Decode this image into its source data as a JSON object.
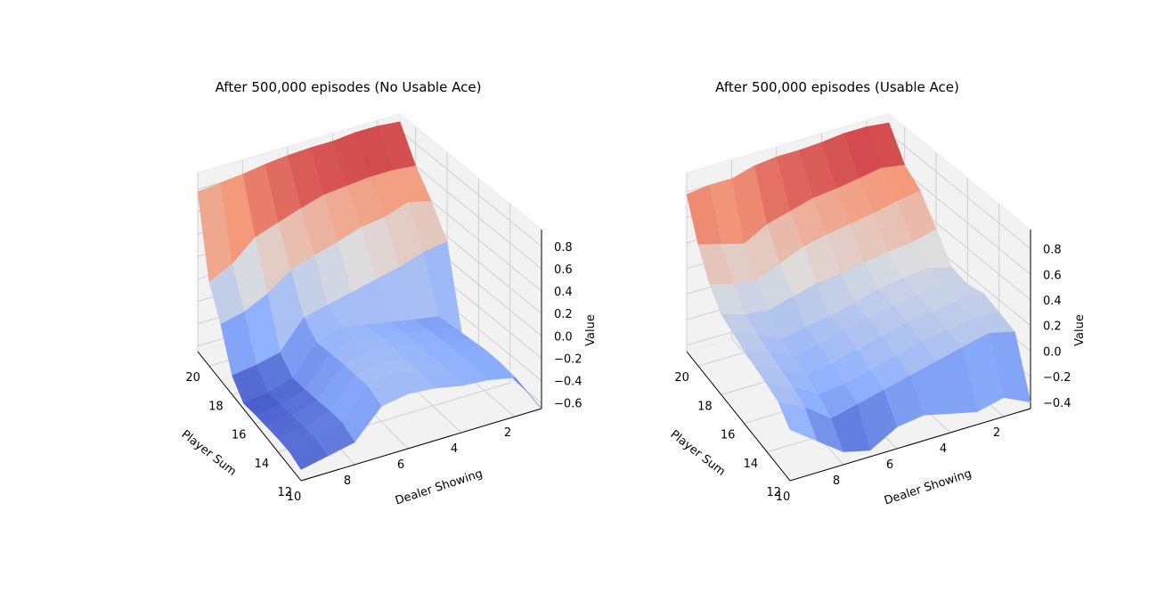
{
  "figure": {
    "type": "surface3d",
    "colormap": "coolwarm"
  },
  "chart_data": [
    {
      "type": "surface3d",
      "title": "After 500,000 episodes (No Usable Ace)",
      "xlabel": "Player Sum",
      "ylabel": "Dealer Showing",
      "zlabel": "Value",
      "x_ticks": [
        "12",
        "14",
        "16",
        "18",
        "20"
      ],
      "y_ticks": [
        "2",
        "4",
        "6",
        "8",
        "10"
      ],
      "z_ticks": [
        "−0.6",
        "−0.4",
        "−0.2",
        "0.0",
        "0.2",
        "0.4",
        "0.6",
        "0.8"
      ],
      "x": [
        12,
        13,
        14,
        15,
        16,
        17,
        18,
        19,
        20,
        21
      ],
      "y": [
        1,
        2,
        3,
        4,
        5,
        6,
        7,
        8,
        9,
        10
      ],
      "zlim": [
        -0.65,
        0.95
      ],
      "z": [
        [
          -0.65,
          -0.3,
          -0.25,
          -0.23,
          -0.18,
          -0.16,
          -0.2,
          -0.45,
          -0.5,
          -0.55
        ],
        [
          -0.6,
          -0.28,
          -0.24,
          -0.2,
          -0.16,
          -0.1,
          -0.15,
          -0.4,
          -0.48,
          -0.52
        ],
        [
          -0.58,
          -0.28,
          -0.25,
          -0.22,
          -0.17,
          -0.12,
          -0.17,
          -0.42,
          -0.5,
          -0.53
        ],
        [
          -0.58,
          -0.3,
          -0.26,
          -0.22,
          -0.18,
          -0.14,
          -0.19,
          -0.45,
          -0.52,
          -0.55
        ],
        [
          -0.6,
          -0.32,
          -0.28,
          -0.24,
          -0.2,
          -0.15,
          -0.22,
          -0.48,
          -0.55,
          -0.57
        ],
        [
          -0.62,
          -0.34,
          -0.3,
          -0.26,
          -0.22,
          -0.18,
          -0.25,
          -0.5,
          -0.57,
          -0.6
        ],
        [
          0.15,
          0.12,
          0.05,
          0.0,
          -0.05,
          -0.1,
          -0.15,
          -0.4,
          -0.45,
          -0.48
        ],
        [
          0.4,
          0.45,
          0.38,
          0.35,
          0.28,
          0.22,
          0.15,
          0.0,
          -0.1,
          -0.15
        ],
        [
          0.6,
          0.62,
          0.62,
          0.6,
          0.58,
          0.52,
          0.45,
          0.38,
          0.2,
          0.1
        ],
        [
          0.88,
          0.9,
          0.9,
          0.88,
          0.88,
          0.87,
          0.85,
          0.82,
          0.8,
          0.78
        ]
      ]
    },
    {
      "type": "surface3d",
      "title": "After 500,000 episodes (Usable Ace)",
      "xlabel": "Player Sum",
      "ylabel": "Dealer Showing",
      "zlabel": "Value",
      "x_ticks": [
        "12",
        "14",
        "16",
        "18",
        "20"
      ],
      "y_ticks": [
        "2",
        "4",
        "6",
        "8",
        "10"
      ],
      "z_ticks": [
        "−0.4",
        "−0.2",
        "0.0",
        "0.2",
        "0.4",
        "0.6",
        "0.8"
      ],
      "x": [
        12,
        13,
        14,
        15,
        16,
        17,
        18,
        19,
        20,
        21
      ],
      "y": [
        1,
        2,
        3,
        4,
        5,
        6,
        7,
        8,
        9,
        10
      ],
      "zlim": [
        -0.45,
        0.95
      ],
      "z": [
        [
          -0.4,
          -0.3,
          -0.35,
          -0.3,
          -0.25,
          -0.28,
          -0.4,
          -0.35,
          -0.2,
          -0.05
        ],
        [
          0.05,
          0.1,
          0.05,
          0.0,
          -0.05,
          -0.1,
          -0.15,
          -0.2,
          -0.05,
          0.05
        ],
        [
          0.1,
          0.12,
          0.08,
          0.05,
          0.0,
          -0.05,
          -0.1,
          -0.12,
          0.0,
          0.08
        ],
        [
          0.15,
          0.15,
          0.12,
          0.1,
          0.05,
          0.0,
          -0.05,
          -0.08,
          0.02,
          0.1
        ],
        [
          0.12,
          0.18,
          0.15,
          0.12,
          0.08,
          0.05,
          0.0,
          -0.05,
          0.05,
          0.12
        ],
        [
          0.15,
          0.2,
          0.18,
          0.15,
          0.1,
          0.05,
          0.02,
          -0.02,
          0.08,
          0.15
        ],
        [
          0.35,
          0.3,
          0.28,
          0.25,
          0.22,
          0.2,
          0.15,
          0.1,
          0.12,
          0.18
        ],
        [
          0.55,
          0.52,
          0.48,
          0.45,
          0.42,
          0.38,
          0.3,
          0.22,
          0.25,
          0.3
        ],
        [
          0.65,
          0.68,
          0.65,
          0.62,
          0.6,
          0.55,
          0.5,
          0.4,
          0.45,
          0.5
        ],
        [
          0.88,
          0.9,
          0.9,
          0.88,
          0.87,
          0.87,
          0.85,
          0.8,
          0.8,
          0.78
        ]
      ]
    }
  ]
}
